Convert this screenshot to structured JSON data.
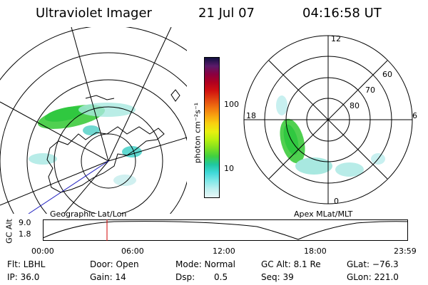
{
  "header": {
    "instrument": "Ultraviolet Imager",
    "date": "21 Jul 07",
    "time": "04:16:58 UT"
  },
  "colorbar": {
    "unit_label": "photon cm⁻²s⁻¹",
    "ticks": [
      "100",
      "10"
    ],
    "colors": [
      "#101040",
      "#5a1a6a",
      "#8a0040",
      "#b00020",
      "#d01010",
      "#e04010",
      "#f07010",
      "#f8a010",
      "#f8d010",
      "#e8f010",
      "#b8f010",
      "#80e020",
      "#40d040",
      "#20c8a0",
      "#40d8d8",
      "#80e8e8",
      "#c0f0f0",
      "#e8f8f8"
    ]
  },
  "left_map": {
    "caption": "Geographic Lat/Lon"
  },
  "right_map": {
    "caption": "Apex MLat/MLT",
    "mlt_labels": {
      "top": "12",
      "left": "18",
      "right": "6",
      "bottom": "0"
    },
    "lat_labels": [
      "60",
      "70",
      "80"
    ]
  },
  "altitude_plot": {
    "ylabel": "GC Alt",
    "yticks": [
      "9.0",
      "1.8"
    ],
    "xticks": [
      "00:00",
      "06:00",
      "12:00",
      "18:00",
      "23:59"
    ],
    "marker_color": "#d00000"
  },
  "status": {
    "filter": "Flt: LBHL",
    "ip": "IP: 36.0",
    "door": "Door: Open",
    "gain": "Gain: 14",
    "mode": "Mode: Normal",
    "dsp_label": "Dsp:",
    "dsp_value": "0.5",
    "gc_alt": "GC Alt: 8.1 Re",
    "seq": "Seq: 39",
    "glat": "GLat: −76.3",
    "glon": "GLon: 221.0"
  }
}
